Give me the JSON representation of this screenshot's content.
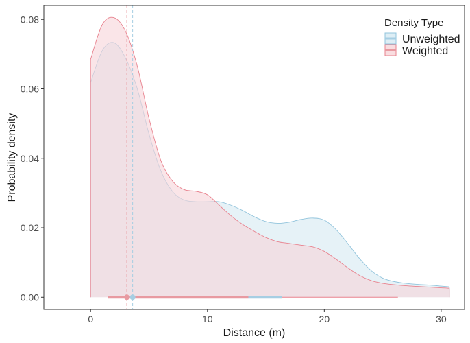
{
  "chart_data": {
    "type": "area",
    "title": "",
    "xlabel": "Distance (m)",
    "ylabel": "Probability density",
    "xlim": [
      -4,
      32
    ],
    "ylim": [
      -0.0035,
      0.084
    ],
    "x_ticks": [
      0,
      10,
      20,
      30
    ],
    "x_tick_labels": [
      "0",
      "10",
      "20",
      "30"
    ],
    "y_ticks": [
      0.0,
      0.02,
      0.04,
      0.06,
      0.08
    ],
    "y_tick_labels": [
      "0.00",
      "0.02",
      "0.04",
      "0.06",
      "0.08"
    ],
    "grid": false,
    "legend": {
      "title": "Density Type",
      "position": "top-right",
      "entries": [
        "Unweighted",
        "Weighted"
      ]
    },
    "series": [
      {
        "name": "Unweighted",
        "fill": "#d6eaf2",
        "stroke": "#92c4dc",
        "point_color": "#a6cee3",
        "x": [
          0,
          1,
          2,
          3,
          4,
          5,
          6,
          7,
          8,
          9,
          10,
          11,
          12,
          13,
          14,
          15,
          16,
          17,
          18,
          19,
          20,
          21,
          22,
          23,
          24,
          25,
          26,
          27,
          28,
          29,
          30,
          30.7
        ],
        "y": [
          0.0618,
          0.071,
          0.0733,
          0.0688,
          0.06,
          0.047,
          0.0365,
          0.0305,
          0.028,
          0.0275,
          0.0275,
          0.0275,
          0.0265,
          0.025,
          0.0232,
          0.0218,
          0.0213,
          0.0216,
          0.0224,
          0.0228,
          0.0222,
          0.0195,
          0.0155,
          0.0112,
          0.0077,
          0.0055,
          0.0045,
          0.004,
          0.0037,
          0.0035,
          0.0032,
          0.003
        ],
        "median": 3.6,
        "interval": [
          1.5,
          16.4
        ]
      },
      {
        "name": "Weighted",
        "fill": "#f7d4d8",
        "stroke": "#e8828e",
        "point_color": "#e89aa1",
        "x": [
          0,
          1,
          2,
          3,
          4,
          5,
          6,
          7,
          8,
          9,
          10,
          11,
          12,
          13,
          14,
          15,
          16,
          17,
          18,
          19,
          20,
          21,
          22,
          23,
          24,
          25,
          26,
          27,
          28,
          29,
          30,
          30.7
        ],
        "y": [
          0.0685,
          0.0785,
          0.0805,
          0.0765,
          0.0665,
          0.0515,
          0.0395,
          0.0335,
          0.031,
          0.0305,
          0.0295,
          0.0265,
          0.0235,
          0.021,
          0.019,
          0.0172,
          0.016,
          0.0155,
          0.015,
          0.0145,
          0.0132,
          0.011,
          0.0085,
          0.0063,
          0.0048,
          0.004,
          0.0036,
          0.0033,
          0.0031,
          0.0029,
          0.0027,
          0.0026
        ],
        "median": 3.1,
        "interval": [
          1.5,
          26.3
        ]
      }
    ]
  }
}
